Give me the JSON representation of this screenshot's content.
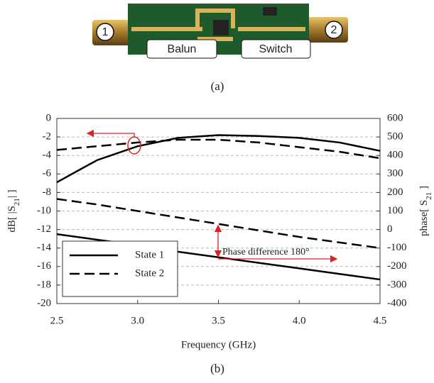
{
  "photo": {
    "port_labels": [
      "1",
      "2"
    ],
    "block_labels": [
      "Balun",
      "Switch"
    ],
    "caption": "(a)"
  },
  "chart_data": {
    "type": "line",
    "x_label": "Frequency (GHz)",
    "y_label": [
      "dB[ |S",
      "21",
      "| ]"
    ],
    "y2_label": [
      "phase[ S",
      "21",
      " ]"
    ],
    "annotation": "Phase difference 180°",
    "x": [
      2.5,
      2.75,
      3.0,
      3.25,
      3.5,
      3.75,
      4.0,
      4.25,
      4.5
    ],
    "series": [
      {
        "name": "State 1",
        "color": "#000000",
        "dash": false,
        "values": [
          -6.9,
          -4.5,
          -3.0,
          -2.1,
          -1.8,
          -1.9,
          -2.1,
          -2.6,
          -3.5
        ]
      },
      {
        "name": "State 2",
        "color": "#000000",
        "dash": true,
        "values": [
          -3.4,
          -3.0,
          -2.6,
          -2.3,
          -2.3,
          -2.6,
          -3.1,
          -3.6,
          -4.3
        ]
      },
      {
        "name": "State 1",
        "color": "#000000",
        "dash": false,
        "axis": "y2",
        "values": [
          -25,
          -55,
          -85,
          -120,
          -150,
          -180,
          -210,
          -240,
          -270
        ]
      },
      {
        "name": "State 2",
        "color": "#000000",
        "dash": true,
        "axis": "y2",
        "values": [
          165,
          135,
          100,
          65,
          30,
          -5,
          -40,
          -70,
          -100
        ]
      }
    ],
    "xlim": [
      2.5,
      4.5
    ],
    "xticks": [
      2.5,
      {
        "value": 3,
        "label": "3.0"
      },
      3.5,
      {
        "value": 4,
        "label": "4.0"
      },
      4.5
    ],
    "ylim": [
      -20,
      0
    ],
    "yticks": [
      -20,
      -18,
      -16,
      -14,
      -12,
      -10,
      -8,
      -6,
      -4,
      -2,
      0
    ],
    "y2lim": [
      -400,
      600
    ],
    "y2ticks": [
      -400,
      -300,
      -200,
      -100,
      0,
      100,
      200,
      300,
      400,
      500,
      600
    ],
    "grid": true,
    "legend": "lower left"
  },
  "figure_caption": "(b)"
}
